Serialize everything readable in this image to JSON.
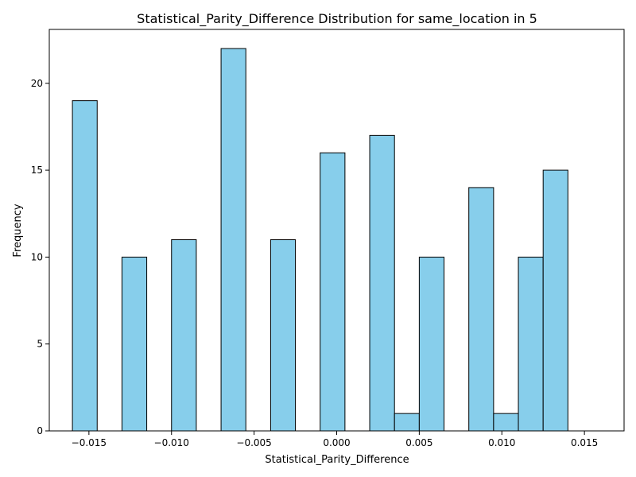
{
  "chart_data": {
    "type": "bar",
    "title": "Statistical_Parity_Difference Distribution for same_location in 5",
    "xlabel": "Statistical_Parity_Difference",
    "ylabel": "Frequency",
    "xlim": [
      -0.0174,
      0.0174
    ],
    "ylim": [
      0,
      23.1
    ],
    "x_ticks": [
      -0.015,
      -0.01,
      -0.005,
      0.0,
      0.005,
      0.01,
      0.015
    ],
    "x_tick_labels": [
      "−0.015",
      "−0.010",
      "−0.005",
      "0.000",
      "0.005",
      "0.010",
      "0.015"
    ],
    "y_ticks": [
      0,
      5,
      10,
      15,
      20
    ],
    "y_tick_labels": [
      "0",
      "5",
      "10",
      "15",
      "20"
    ],
    "grid": false,
    "legend": "none",
    "bin_width": 0.0015,
    "bins": [
      {
        "start": -0.016,
        "value": 19
      },
      {
        "start": -0.0145,
        "value": 0
      },
      {
        "start": -0.013,
        "value": 10
      },
      {
        "start": -0.0115,
        "value": 0
      },
      {
        "start": -0.01,
        "value": 11
      },
      {
        "start": -0.0085,
        "value": 0
      },
      {
        "start": -0.007,
        "value": 22
      },
      {
        "start": -0.0055,
        "value": 0
      },
      {
        "start": -0.004,
        "value": 11
      },
      {
        "start": -0.0025,
        "value": 0
      },
      {
        "start": -0.001,
        "value": 16
      },
      {
        "start": 0.0005,
        "value": 0
      },
      {
        "start": 0.002,
        "value": 17
      },
      {
        "start": 0.0035,
        "value": 1
      },
      {
        "start": 0.005,
        "value": 10
      },
      {
        "start": 0.0065,
        "value": 0
      },
      {
        "start": 0.008,
        "value": 14
      },
      {
        "start": 0.0095,
        "value": 1
      },
      {
        "start": 0.011,
        "value": 10
      },
      {
        "start": 0.0125,
        "value": 15
      }
    ],
    "colors": {
      "bar_fill": "#87ceeb",
      "bar_edge": "#000000"
    }
  }
}
